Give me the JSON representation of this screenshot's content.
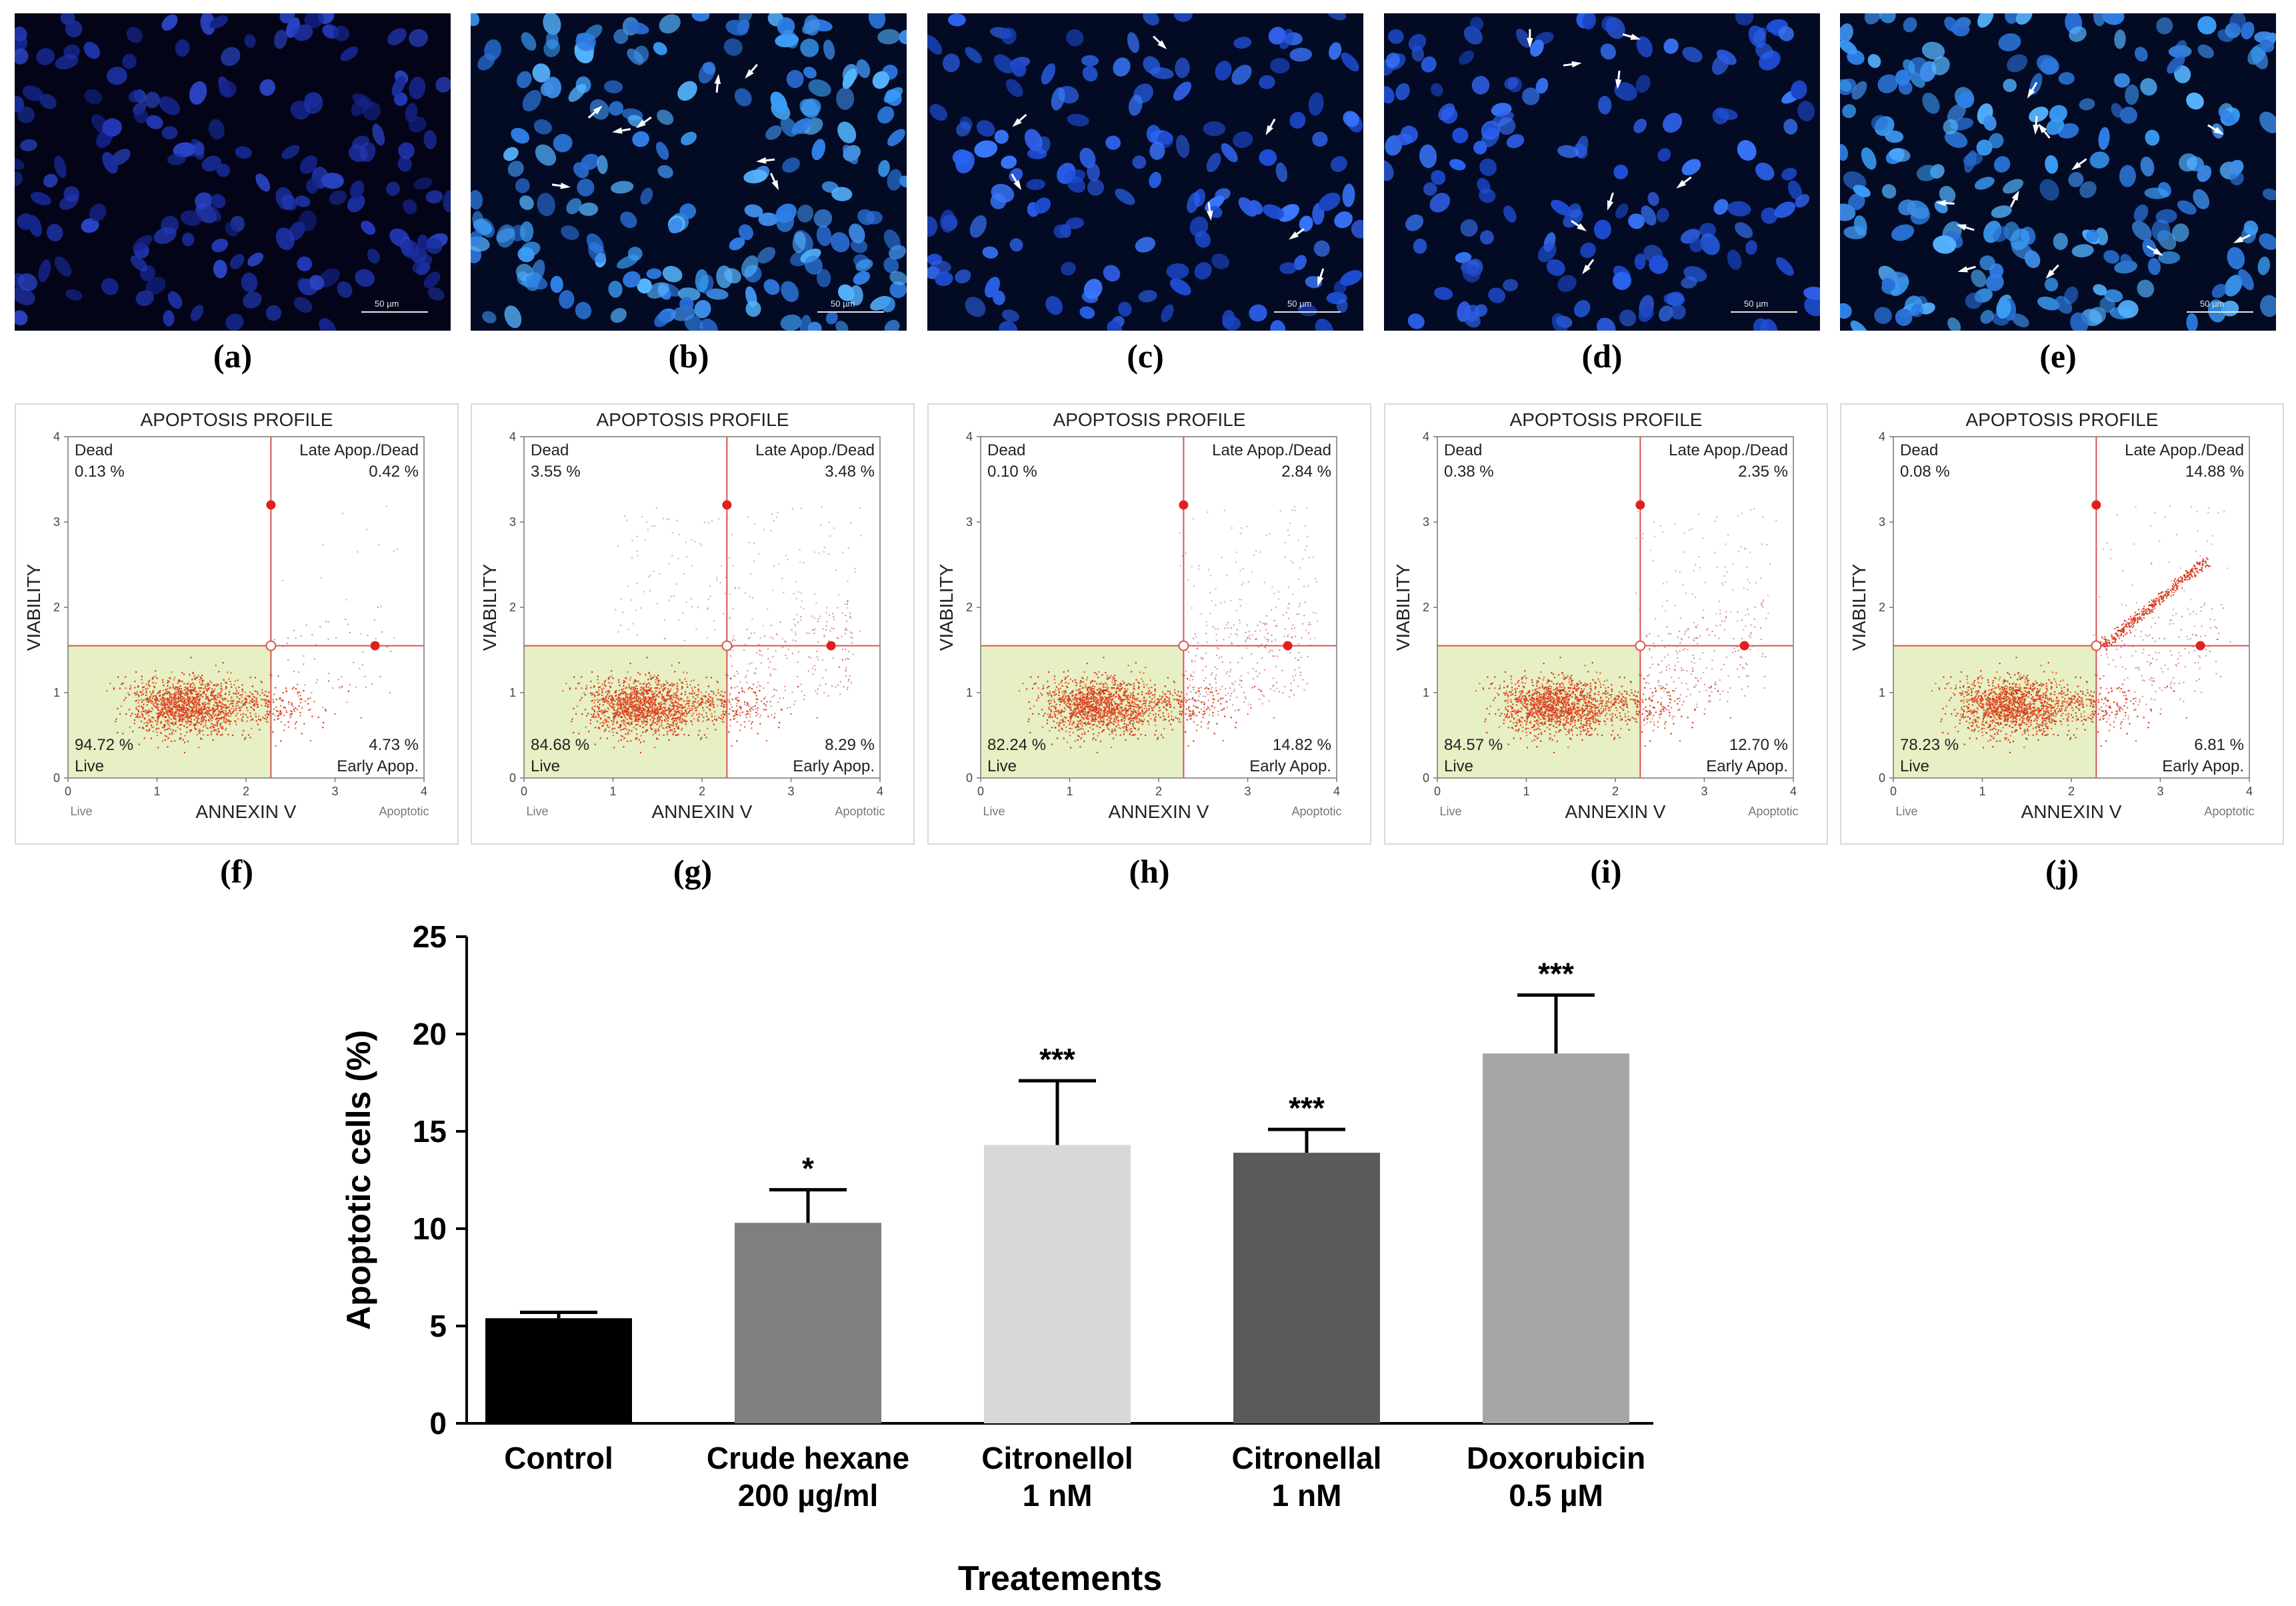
{
  "micrographs": [
    {
      "label": "(a)",
      "scale_bar": "50 µm",
      "brightness": "dim",
      "arrows": 0
    },
    {
      "label": "(b)",
      "scale_bar": "50 µm",
      "brightness": "bright",
      "arrows": 8
    },
    {
      "label": "(c)",
      "scale_bar": "50 µm",
      "brightness": "medium",
      "arrows": 7
    },
    {
      "label": "(d)",
      "scale_bar": "50 µm",
      "brightness": "medium",
      "arrows": 8
    },
    {
      "label": "(e)",
      "scale_bar": "50 µm",
      "brightness": "bright",
      "arrows": 12
    }
  ],
  "flow_panels": [
    {
      "label": "(f)",
      "title": "APOPTOSIS PROFILE",
      "ylabel": "VIABILITY",
      "xlabel": "ANNEXIN V",
      "x_left": "Live",
      "x_right": "Apoptotic",
      "dead_label": "Dead",
      "dead": "0.13 %",
      "late_label": "Late Apop./Dead",
      "late": "0.42 %",
      "live": "94.72 %",
      "live_label": "Live",
      "early": "4.73 %",
      "early_label": "Early Apop.",
      "ticks_x": [
        "0",
        "1",
        "2",
        "3",
        "4"
      ],
      "ticks_y": [
        "0",
        "1",
        "2",
        "3",
        "4"
      ],
      "diagonal": false
    },
    {
      "label": "(g)",
      "title": "APOPTOSIS PROFILE",
      "ylabel": "VIABILITY",
      "xlabel": "ANNEXIN V",
      "x_left": "Live",
      "x_right": "Apoptotic",
      "dead_label": "Dead",
      "dead": "3.55 %",
      "late_label": "Late Apop./Dead",
      "late": "3.48 %",
      "live": "84.68 %",
      "live_label": "Live",
      "early": "8.29 %",
      "early_label": "Early Apop.",
      "ticks_x": [
        "0",
        "1",
        "2",
        "3",
        "4"
      ],
      "ticks_y": [
        "0",
        "1",
        "2",
        "3",
        "4"
      ],
      "diagonal": false
    },
    {
      "label": "(h)",
      "title": "APOPTOSIS PROFILE",
      "ylabel": "VIABILITY",
      "xlabel": "ANNEXIN V",
      "x_left": "Live",
      "x_right": "Apoptotic",
      "dead_label": "Dead",
      "dead": "0.10 %",
      "late_label": "Late Apop./Dead",
      "late": "2.84 %",
      "live": "82.24 %",
      "live_label": "Live",
      "early": "14.82 %",
      "early_label": "Early Apop.",
      "ticks_x": [
        "0",
        "1",
        "2",
        "3",
        "4"
      ],
      "ticks_y": [
        "0",
        "1",
        "2",
        "3",
        "4"
      ],
      "diagonal": false
    },
    {
      "label": "(i)",
      "title": "APOPTOSIS PROFILE",
      "ylabel": "VIABILITY",
      "xlabel": "ANNEXIN V",
      "x_left": "Live",
      "x_right": "Apoptotic",
      "dead_label": "Dead",
      "dead": "0.38 %",
      "late_label": "Late Apop./Dead",
      "late": "2.35 %",
      "live": "84.57 %",
      "live_label": "Live",
      "early": "12.70 %",
      "early_label": "Early Apop.",
      "ticks_x": [
        "0",
        "1",
        "2",
        "3",
        "4"
      ],
      "ticks_y": [
        "0",
        "1",
        "2",
        "3",
        "4"
      ],
      "diagonal": false
    },
    {
      "label": "(j)",
      "title": "APOPTOSIS PROFILE",
      "ylabel": "VIABILITY",
      "xlabel": "ANNEXIN V",
      "x_left": "Live",
      "x_right": "Apoptotic",
      "dead_label": "Dead",
      "dead": "0.08 %",
      "late_label": "Late Apop./Dead",
      "late": "14.88 %",
      "live": "78.23 %",
      "live_label": "Live",
      "early": "6.81 %",
      "early_label": "Early Apop.",
      "ticks_x": [
        "0",
        "1",
        "2",
        "3",
        "4"
      ],
      "ticks_y": [
        "0",
        "1",
        "2",
        "3",
        "4"
      ],
      "diagonal": true
    }
  ],
  "chart_data": {
    "type": "bar",
    "title": "",
    "xlabel": "Treatements",
    "ylabel": "Apoptotic cells (%)",
    "ylim": [
      0,
      25
    ],
    "yticks": [
      "0",
      "5",
      "10",
      "15",
      "20",
      "25"
    ],
    "categories": [
      {
        "line1": "Control",
        "line2": ""
      },
      {
        "line1": "Crude hexane",
        "line2": "200 µg/ml"
      },
      {
        "line1": "Citronellol",
        "line2": "1 nM"
      },
      {
        "line1": "Citronellal",
        "line2": "1 nM"
      },
      {
        "line1": "Doxorubicin",
        "line2": "0.5 µM"
      }
    ],
    "values": [
      5.4,
      10.3,
      14.3,
      13.9,
      19.0
    ],
    "errors": [
      0.3,
      1.7,
      3.3,
      1.2,
      3.0
    ],
    "significance": [
      "",
      "*",
      "***",
      "***",
      "***"
    ],
    "colors": [
      "#000000",
      "#7f7f7f",
      "#d8d8d8",
      "#5a5a5a",
      "#a6a6a6"
    ],
    "grid": false
  }
}
